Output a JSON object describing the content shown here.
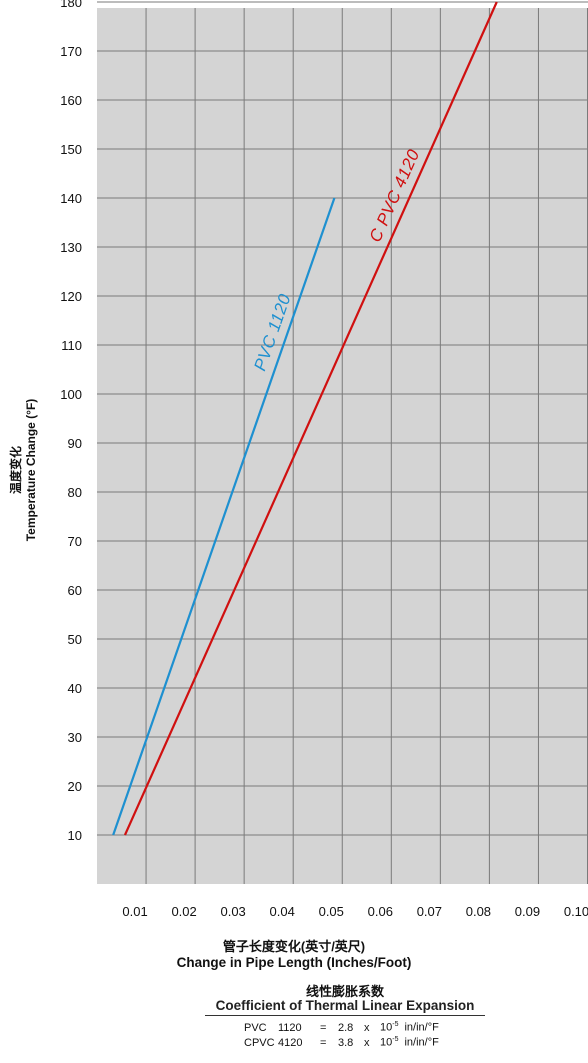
{
  "chart_data": {
    "type": "line",
    "xlabel_cn": "管子长度变化(英寸/英尺)",
    "xlabel": "Change in Pipe Length (Inches/Foot)",
    "ylabel_cn": "温度变化",
    "ylabel": "Temperature Change (°F)",
    "xlim": [
      0,
      0.1
    ],
    "ylim": [
      0,
      180
    ],
    "x_ticks": [
      "0.01",
      "0.02",
      "0.03",
      "0.04",
      "0.05",
      "0.06",
      "0.07",
      "0.08",
      "0.09",
      "0.10"
    ],
    "y_ticks": [
      10,
      20,
      30,
      40,
      50,
      60,
      70,
      80,
      90,
      100,
      110,
      120,
      130,
      140,
      150,
      160,
      170,
      180
    ],
    "grid": true,
    "background": "#d4d4d4",
    "series": [
      {
        "name": "PVC  1120",
        "color": "#1e90d0",
        "x": [
          0.0033,
          0.0484
        ],
        "y": [
          10,
          140
        ]
      },
      {
        "name": "C PVC  4120",
        "color": "#d01010",
        "x": [
          0.0057,
          0.0815
        ],
        "y": [
          10,
          180
        ]
      }
    ]
  },
  "coefficient": {
    "title_cn": "线性膨胀系数",
    "title": "Coefficient of Thermal Linear Expansion",
    "rows": [
      {
        "material": "PVC",
        "grade": "1120",
        "eq": "=",
        "value": "2.8",
        "x": "x",
        "base": "10",
        "exp": "-5",
        "unit": "in/in/°F"
      },
      {
        "material": "CPVC",
        "grade": "4120",
        "eq": "=",
        "value": "3.8",
        "x": "x",
        "base": "10",
        "exp": "-5",
        "unit": "in/in/°F"
      }
    ]
  }
}
